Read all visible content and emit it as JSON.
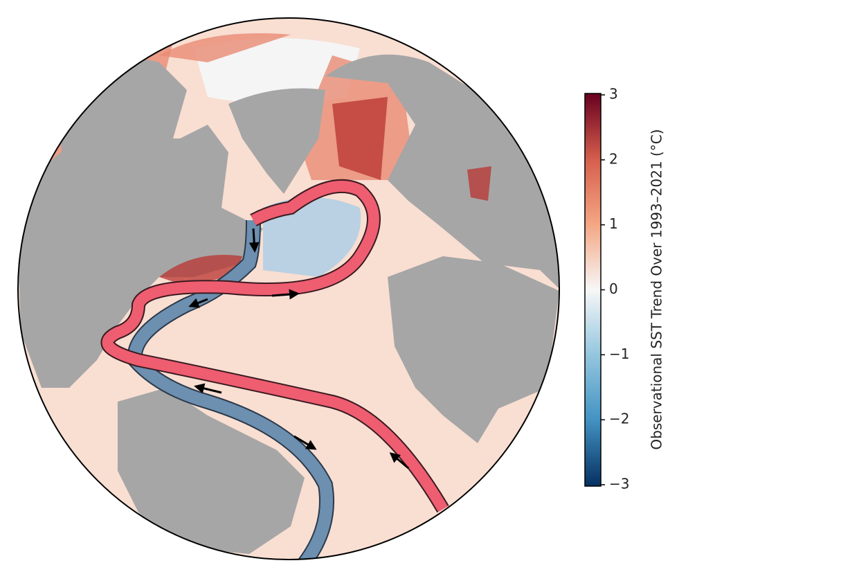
{
  "colorbar": {
    "label": "Observational SST Trend Over 1993–2021 (°C)",
    "range": [
      -3,
      3
    ],
    "ticks": [
      3,
      2,
      1,
      0,
      {
        "value": -1,
        "label": "−1"
      },
      {
        "value": -2,
        "label": "−2"
      },
      {
        "value": -3,
        "label": "−3"
      }
    ]
  }
}
